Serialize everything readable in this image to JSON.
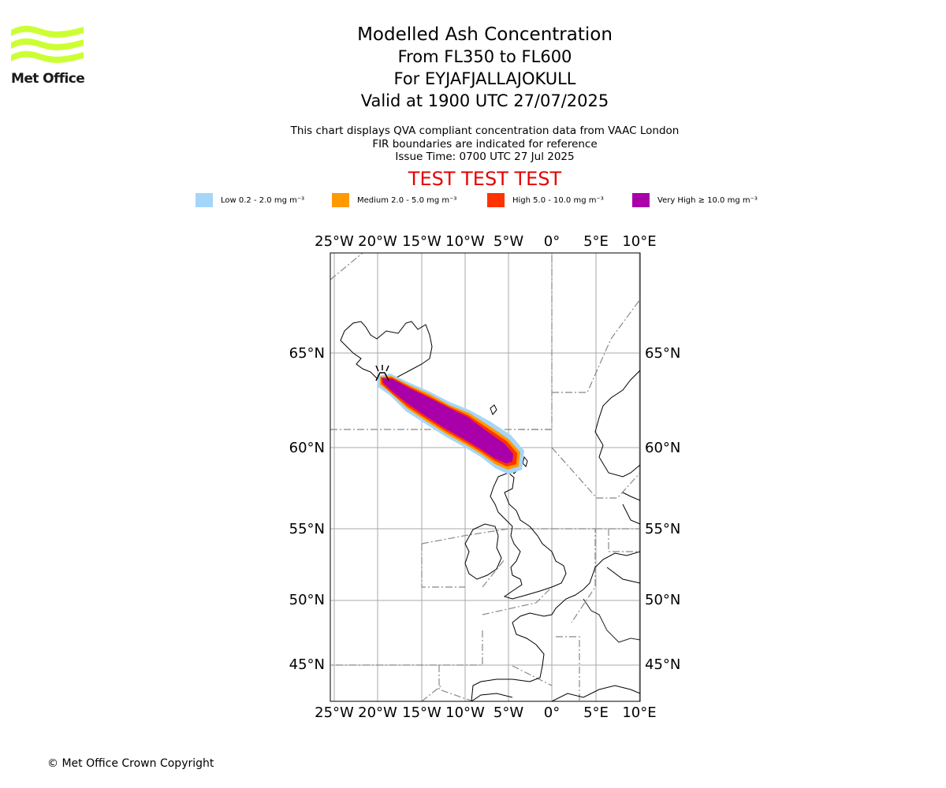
{
  "logo": {
    "text": "Met Office",
    "color": "#ccff33"
  },
  "titles": {
    "main": "Modelled Ash Concentration",
    "levels": "From FL350 to FL600",
    "volcano": "For EYJAFJALLAJOKULL",
    "valid": "Valid at 1900 UTC 27/07/2025"
  },
  "subtitles": {
    "line1": "This chart displays QVA compliant concentration data from VAAC London",
    "line2": "FIR boundaries are indicated for reference",
    "line3": "Issue Time: 0700 UTC 27 Jul 2025"
  },
  "test_banner": "TEST TEST TEST",
  "legend": [
    {
      "label": "Low 0.2 - 2.0 mg m⁻³",
      "color": "#a6d5fa"
    },
    {
      "label": "Medium 2.0 - 5.0 mg m⁻³",
      "color": "#ff9900"
    },
    {
      "label": "High 5.0 - 10.0 mg m⁻³",
      "color": "#ff3300"
    },
    {
      "label": "Very High  ≥  10.0 mg m⁻³",
      "color": "#aa00aa"
    }
  ],
  "map": {
    "lon_ticks": [
      "25°W",
      "20°W",
      "15°W",
      "10°W",
      "5°W",
      "0°",
      "5°E",
      "10°E"
    ],
    "lat_ticks": [
      "65°N",
      "60°N",
      "55°N",
      "50°N",
      "45°N"
    ],
    "volcano_symbol": "volcano-icon"
  },
  "copyright": "© Met Office Crown Copyright"
}
